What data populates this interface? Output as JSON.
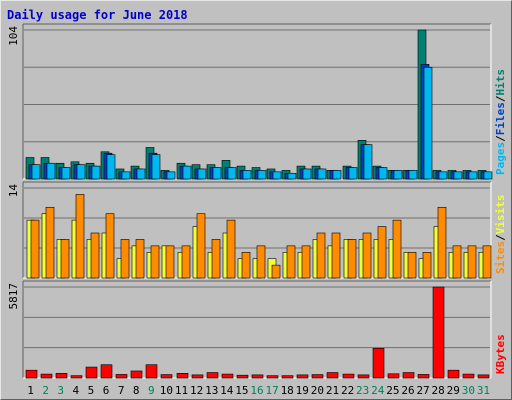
{
  "title": "Daily usage for June 2018",
  "colors": {
    "pages": "#00b8f0",
    "files": "#0040c0",
    "hits": "#008070",
    "visits": "#f0ff38",
    "sites": "#ff8c00",
    "kbytes": "#ff0000",
    "weekend_day": "#00805c",
    "weekday": "#000000"
  },
  "chart_data": [
    {
      "type": "bar",
      "panel": "hits-files-pages",
      "ymax_label": "104",
      "ylim": [
        0,
        104
      ],
      "legend": [
        "Pages",
        "Files",
        "Hits"
      ],
      "legend_separator": "/",
      "categories": [
        "1",
        "2",
        "3",
        "4",
        "5",
        "6",
        "7",
        "8",
        "9",
        "10",
        "11",
        "12",
        "13",
        "14",
        "15",
        "16",
        "17",
        "18",
        "19",
        "20",
        "21",
        "22",
        "23",
        "24",
        "25",
        "26",
        "27",
        "28",
        "29",
        "30",
        "31"
      ],
      "series": [
        {
          "name": "Hits",
          "color_key": "hits",
          "values": [
            15,
            15,
            11,
            12,
            11,
            19,
            7,
            9,
            22,
            6,
            11,
            10,
            10,
            13,
            9,
            8,
            7,
            6,
            9,
            9,
            6,
            9,
            27,
            9,
            6,
            6,
            104,
            6,
            6,
            6,
            6
          ]
        },
        {
          "name": "Files",
          "color_key": "files",
          "values": [
            10,
            11,
            8,
            10,
            9,
            18,
            5,
            7,
            18,
            5,
            9,
            7,
            8,
            8,
            6,
            6,
            5,
            4,
            7,
            7,
            6,
            8,
            24,
            8,
            6,
            6,
            80,
            5,
            5,
            5,
            5
          ]
        },
        {
          "name": "Pages",
          "color_key": "pages",
          "values": [
            10,
            11,
            8,
            10,
            9,
            17,
            5,
            7,
            17,
            5,
            9,
            7,
            8,
            8,
            6,
            6,
            5,
            4,
            7,
            7,
            6,
            8,
            24,
            8,
            6,
            6,
            78,
            5,
            5,
            5,
            5
          ]
        }
      ]
    },
    {
      "type": "bar",
      "panel": "visits-sites",
      "ymax_label": "14",
      "ylim": [
        0,
        14
      ],
      "legend": [
        "Sites",
        "Visits"
      ],
      "legend_separator": "/",
      "categories": [
        "1",
        "2",
        "3",
        "4",
        "5",
        "6",
        "7",
        "8",
        "9",
        "10",
        "11",
        "12",
        "13",
        "14",
        "15",
        "16",
        "17",
        "18",
        "19",
        "20",
        "21",
        "22",
        "23",
        "24",
        "25",
        "26",
        "27",
        "28",
        "29",
        "30",
        "31"
      ],
      "series": [
        {
          "name": "Visits",
          "color_key": "visits",
          "values": [
            9,
            10,
            6,
            9,
            6,
            7,
            3,
            5,
            4,
            5,
            4,
            8,
            4,
            7,
            3,
            3,
            3,
            4,
            4,
            6,
            5,
            6,
            6,
            6,
            6,
            4,
            3,
            8,
            4,
            4,
            4
          ]
        },
        {
          "name": "Sites",
          "color_key": "sites",
          "values": [
            9,
            11,
            6,
            13,
            7,
            10,
            6,
            6,
            5,
            5,
            5,
            10,
            6,
            9,
            4,
            5,
            2,
            5,
            5,
            7,
            7,
            6,
            7,
            8,
            9,
            4,
            4,
            11,
            5,
            5,
            5
          ]
        }
      ]
    },
    {
      "type": "bar",
      "panel": "kbytes",
      "ymax_label": "5817",
      "ylim": [
        0,
        5817
      ],
      "legend": [
        "KBytes"
      ],
      "categories": [
        "1",
        "2",
        "3",
        "4",
        "5",
        "6",
        "7",
        "8",
        "9",
        "10",
        "11",
        "12",
        "13",
        "14",
        "15",
        "16",
        "17",
        "18",
        "19",
        "20",
        "21",
        "22",
        "23",
        "24",
        "25",
        "26",
        "27",
        "28",
        "29",
        "30",
        "31"
      ],
      "series": [
        {
          "name": "KBytes",
          "color_key": "kbytes",
          "values": [
            500,
            250,
            300,
            150,
            700,
            850,
            230,
            450,
            850,
            220,
            300,
            200,
            350,
            250,
            180,
            200,
            150,
            150,
            200,
            220,
            350,
            250,
            200,
            1900,
            270,
            350,
            230,
            5817,
            500,
            250,
            200
          ]
        }
      ]
    }
  ],
  "x_axis": {
    "labels": [
      "1",
      "2",
      "3",
      "4",
      "5",
      "6",
      "7",
      "8",
      "9",
      "10",
      "11",
      "12",
      "13",
      "14",
      "15",
      "16",
      "17",
      "18",
      "19",
      "20",
      "21",
      "22",
      "23",
      "24",
      "25",
      "26",
      "27",
      "28",
      "29",
      "30",
      "31"
    ],
    "weekend_days": [
      "2",
      "3",
      "9",
      "16",
      "17",
      "23",
      "24",
      "30",
      "31"
    ]
  }
}
